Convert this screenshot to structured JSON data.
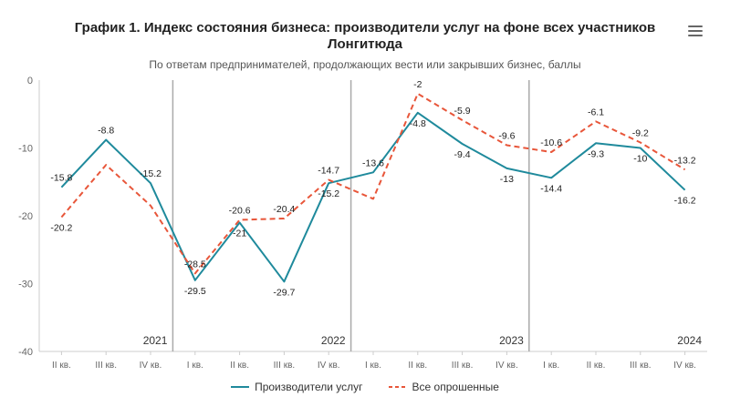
{
  "header": {
    "title_line1": "График 1. Индекс состояния бизнеса: производители услуг на фоне всех участников",
    "title_line2": "Лонгитюда",
    "subtitle": "По ответам предпринимателей, продолжающих вести или закрывших бизнес, баллы"
  },
  "menu_icon": "hamburger-menu-icon",
  "chart_data": {
    "type": "line",
    "categories": [
      "II кв.",
      "III кв.",
      "IV кв.",
      "I кв.",
      "II кв.",
      "III кв.",
      "IV кв.",
      "I кв.",
      "II кв.",
      "III кв.",
      "IV кв.",
      "I кв.",
      "II кв.",
      "III кв.",
      "IV кв."
    ],
    "years": [
      {
        "label": "2021",
        "from": 0,
        "to": 2
      },
      {
        "label": "2022",
        "from": 3,
        "to": 6
      },
      {
        "label": "2023",
        "from": 7,
        "to": 10
      },
      {
        "label": "2024",
        "from": 11,
        "to": 14
      }
    ],
    "ylim": [
      -40,
      0
    ],
    "yticks": [
      0,
      -10,
      -20,
      -30,
      -40
    ],
    "series": [
      {
        "name": "Производители услуг",
        "color": "#1f8a9c",
        "dash": false,
        "values": [
          -15.8,
          -8.8,
          -15.2,
          -29.5,
          -21,
          -29.7,
          -15.2,
          -13.6,
          -4.8,
          -9.4,
          -13,
          -14.4,
          -9.3,
          -10,
          -16.2
        ],
        "label_texts": [
          "-15.8",
          "-8.8",
          "-15.2",
          "-29.5",
          "-21",
          "-29.7",
          "-15.2",
          "-13.6",
          "-4.8",
          "-9.4",
          "-13",
          "-14.4",
          "-9.3",
          "-10",
          "-16.2"
        ]
      },
      {
        "name": "Все опрошенные",
        "color": "#e8563a",
        "dash": true,
        "values": [
          -20.2,
          -12.5,
          -18.5,
          -28.5,
          -20.6,
          -20.4,
          -14.7,
          -17.5,
          -2,
          -5.9,
          -9.6,
          -10.6,
          -6.1,
          -9.2,
          -13.2
        ],
        "label_texts": [
          "-20.2",
          "",
          "",
          "-28.5",
          "-20.6",
          "-20.4",
          "-14.7",
          "",
          "-2",
          "-5.9",
          "-9.6",
          "-10.6",
          "-6.1",
          "-9.2",
          "-13.2"
        ]
      }
    ],
    "grid": false,
    "legend_position": "bottom-center"
  }
}
